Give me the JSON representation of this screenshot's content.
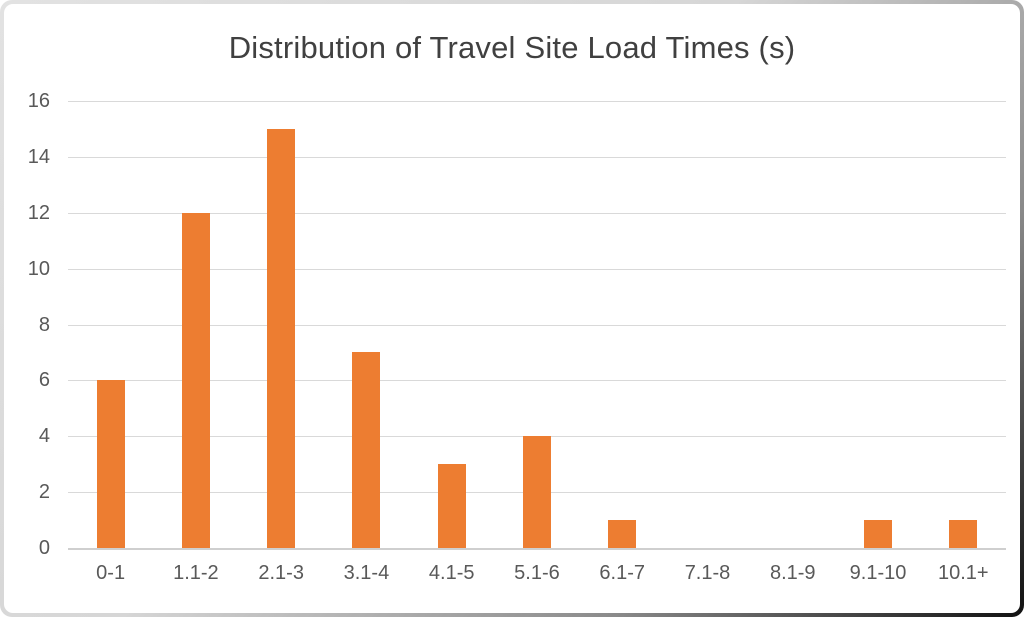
{
  "chart_data": {
    "type": "bar",
    "title": "Distribution of Travel Site Load Times (s)",
    "categories": [
      "0-1",
      "1.1-2",
      "2.1-3",
      "3.1-4",
      "4.1-5",
      "5.1-6",
      "6.1-7",
      "7.1-8",
      "8.1-9",
      "9.1-10",
      "10.1+"
    ],
    "values": [
      6,
      12,
      15,
      7,
      3,
      4,
      1,
      0,
      0,
      1,
      1
    ],
    "xlabel": "",
    "ylabel": "",
    "ylim": [
      0,
      16
    ],
    "ytick_step": 2,
    "grid": true,
    "legend": false,
    "colors": {
      "bar": "#ED7D31",
      "gridline": "#D9D9D9",
      "axis_line": "#CFCFCF",
      "title_text": "#404040",
      "tick_text": "#595959"
    }
  }
}
